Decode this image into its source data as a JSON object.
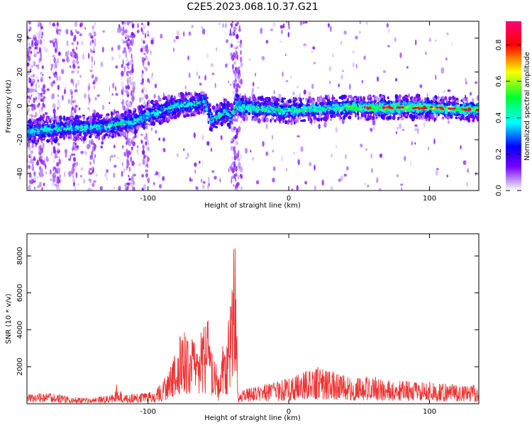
{
  "title": "C2E5.2023.068.10.37.G21",
  "chart_data": [
    {
      "type": "heatmap",
      "name": "spectrogram",
      "xlabel": "Height of straight line (km)",
      "ylabel": "Frequency (Hz)",
      "xlim": [
        -186,
        135
      ],
      "ylim": [
        -50,
        50
      ],
      "x_ticks": [
        -100,
        0,
        100
      ],
      "y_ticks": [
        -40,
        -20,
        0,
        20,
        40
      ],
      "colorbar": {
        "label": "Normalized spectral amplitude",
        "range": [
          0,
          0.93
        ],
        "ticks": [
          "0.0",
          "0.2",
          "0.4",
          "0.6",
          "0.8"
        ],
        "colors": [
          "#ffffff",
          "#c9a7f5",
          "#7a00ff",
          "#0000ff",
          "#00ffff",
          "#00ff33",
          "#ffff00",
          "#ff0000",
          "#ff0077"
        ]
      },
      "ridge": {
        "x": [
          -185,
          -170,
          -150,
          -130,
          -110,
          -100,
          -90,
          -80,
          -70,
          -60,
          -55,
          -52,
          -48,
          -45,
          -42,
          -40,
          -38,
          -35,
          -30,
          -20,
          -10,
          0,
          20,
          40,
          60,
          80,
          100,
          120,
          135
        ],
        "y": [
          -15,
          -14,
          -13,
          -12,
          -9,
          -5,
          -3,
          0,
          1,
          3,
          -8,
          -7,
          -5,
          -3,
          -6,
          -5,
          1,
          -1,
          -1,
          -2,
          -2,
          -3,
          -2,
          -1,
          -1,
          -1,
          -1,
          -2,
          -2
        ]
      }
    },
    {
      "type": "line",
      "name": "snr",
      "xlabel": "Height of straight line (km)",
      "ylabel": "SNR (10 * v/v)",
      "xlim": [
        -186,
        135
      ],
      "ylim": [
        0,
        9200
      ],
      "x_ticks": [
        -100,
        0,
        100
      ],
      "y_ticks": [
        2000,
        4000,
        6000,
        8000
      ],
      "color": "#ee3333",
      "envelope": {
        "x": [
          -186,
          -170,
          -160,
          -150,
          -140,
          -130,
          -125,
          -122,
          -118,
          -110,
          -100,
          -95,
          -90,
          -85,
          -80,
          -75,
          -70,
          -65,
          -62,
          -58,
          -55,
          -52,
          -50,
          -47,
          -44,
          -42,
          -40,
          -38,
          -36,
          -33,
          -30,
          -20,
          -10,
          0,
          10,
          20,
          30,
          40,
          50,
          60,
          70,
          80,
          90,
          100,
          110,
          120,
          135
        ],
        "y": [
          500,
          600,
          450,
          350,
          300,
          450,
          500,
          1100,
          450,
          550,
          600,
          700,
          1200,
          1800,
          3000,
          4200,
          3500,
          3700,
          4100,
          5000,
          3000,
          2400,
          1300,
          3300,
          3500,
          5500,
          8000,
          9000,
          300,
          700,
          900,
          1000,
          1200,
          1400,
          1700,
          2000,
          1800,
          1500,
          1400,
          1500,
          1300,
          1300,
          1200,
          1200,
          1100,
          1000,
          1000
        ]
      }
    }
  ]
}
